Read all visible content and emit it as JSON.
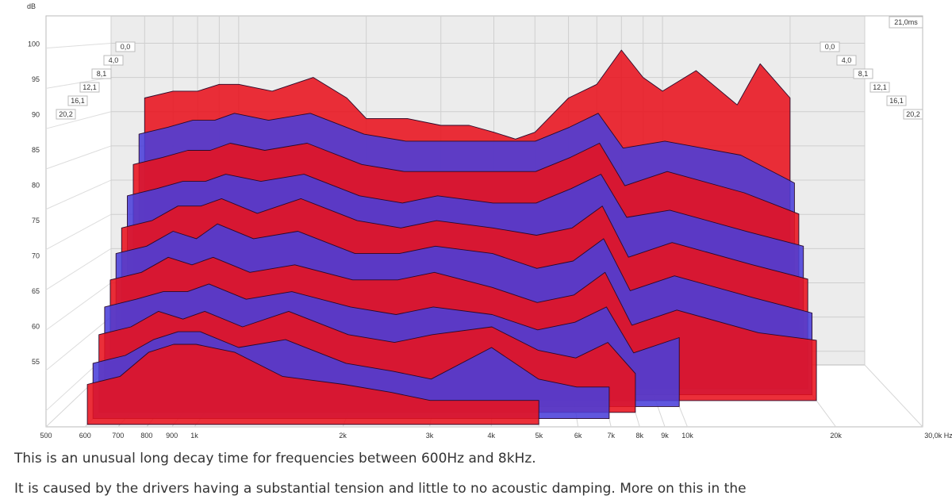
{
  "chart_data": {
    "type": "area",
    "subtype": "waterfall-3d",
    "ylabel": "dB",
    "yticks": [
      55,
      60,
      65,
      70,
      75,
      80,
      85,
      90,
      95,
      100
    ],
    "ylim": [
      53,
      104
    ],
    "xscale": "log",
    "xlim": [
      500,
      30000
    ],
    "xticks": [
      {
        "value": 500,
        "label": "500"
      },
      {
        "value": 600,
        "label": "600"
      },
      {
        "value": 700,
        "label": "700"
      },
      {
        "value": 800,
        "label": "800"
      },
      {
        "value": 900,
        "label": "900"
      },
      {
        "value": 1000,
        "label": "1k"
      },
      {
        "value": 2000,
        "label": "2k"
      },
      {
        "value": 3000,
        "label": "3k"
      },
      {
        "value": 4000,
        "label": "4k"
      },
      {
        "value": 5000,
        "label": "5k"
      },
      {
        "value": 6000,
        "label": "6k"
      },
      {
        "value": 7000,
        "label": "7k"
      },
      {
        "value": 8000,
        "label": "8k"
      },
      {
        "value": 9000,
        "label": "9k"
      },
      {
        "value": 10000,
        "label": "10k"
      },
      {
        "value": 20000,
        "label": "20k"
      },
      {
        "value": 30000,
        "label": "30,0k Hz"
      }
    ],
    "time_axis": {
      "unit": "ms",
      "max_label": "21,0ms",
      "ticks": [
        "0,0",
        "4,0",
        "8,1",
        "12,1",
        "16,1",
        "20,2"
      ]
    },
    "slice_colors": [
      "#e8121e",
      "#4a3fd9"
    ],
    "slices": [
      {
        "t": 20.2,
        "points": [
          [
            600,
            58
          ],
          [
            700,
            59
          ],
          [
            800,
            62
          ],
          [
            900,
            63
          ],
          [
            1000,
            63
          ],
          [
            1200,
            62
          ],
          [
            1500,
            59
          ],
          [
            2000,
            58
          ],
          [
            2500,
            57
          ],
          [
            3000,
            56
          ],
          [
            4000,
            56
          ],
          [
            5000,
            56
          ]
        ]
      },
      {
        "t": 18.2,
        "points": [
          [
            600,
            60
          ],
          [
            700,
            61
          ],
          [
            800,
            63
          ],
          [
            900,
            64
          ],
          [
            1000,
            64
          ],
          [
            1200,
            62
          ],
          [
            1500,
            63
          ],
          [
            2000,
            60
          ],
          [
            2500,
            59
          ],
          [
            3000,
            58
          ],
          [
            4000,
            62
          ],
          [
            5000,
            58
          ],
          [
            6000,
            57
          ],
          [
            7000,
            57
          ]
        ]
      },
      {
        "t": 16.1,
        "points": [
          [
            600,
            63
          ],
          [
            700,
            64
          ],
          [
            800,
            66
          ],
          [
            900,
            65
          ],
          [
            1000,
            66
          ],
          [
            1200,
            64
          ],
          [
            1500,
            66
          ],
          [
            2000,
            63
          ],
          [
            2500,
            62
          ],
          [
            3000,
            63
          ],
          [
            4000,
            64
          ],
          [
            5000,
            61
          ],
          [
            6000,
            60
          ],
          [
            7000,
            62
          ],
          [
            8000,
            58
          ]
        ]
      },
      {
        "t": 14.1,
        "points": [
          [
            600,
            66
          ],
          [
            700,
            67
          ],
          [
            800,
            68
          ],
          [
            900,
            68
          ],
          [
            1000,
            69
          ],
          [
            1200,
            67
          ],
          [
            1500,
            68
          ],
          [
            2000,
            66
          ],
          [
            2500,
            65
          ],
          [
            3000,
            66
          ],
          [
            4000,
            65
          ],
          [
            5000,
            63
          ],
          [
            6000,
            64
          ],
          [
            7000,
            66
          ],
          [
            8000,
            60
          ],
          [
            10000,
            62
          ]
        ]
      },
      {
        "t": 12.1,
        "points": [
          [
            600,
            69
          ],
          [
            700,
            70
          ],
          [
            800,
            72
          ],
          [
            900,
            71
          ],
          [
            1000,
            72
          ],
          [
            1200,
            70
          ],
          [
            1500,
            71
          ],
          [
            2000,
            69
          ],
          [
            2500,
            69
          ],
          [
            3000,
            70
          ],
          [
            4000,
            68
          ],
          [
            5000,
            66
          ],
          [
            6000,
            67
          ],
          [
            7000,
            70
          ],
          [
            8000,
            63
          ],
          [
            10000,
            65
          ],
          [
            15000,
            62
          ],
          [
            20000,
            61
          ]
        ]
      },
      {
        "t": 10.1,
        "points": [
          [
            600,
            72
          ],
          [
            700,
            73
          ],
          [
            800,
            75
          ],
          [
            900,
            74
          ],
          [
            1000,
            76
          ],
          [
            1200,
            74
          ],
          [
            1500,
            75
          ],
          [
            2000,
            72
          ],
          [
            2500,
            72
          ],
          [
            3000,
            73
          ],
          [
            4000,
            72
          ],
          [
            5000,
            70
          ],
          [
            6000,
            71
          ],
          [
            7000,
            74
          ],
          [
            8000,
            67
          ],
          [
            10000,
            69
          ],
          [
            15000,
            66
          ],
          [
            20000,
            64
          ]
        ]
      },
      {
        "t": 8.1,
        "points": [
          [
            600,
            75
          ],
          [
            700,
            76
          ],
          [
            800,
            78
          ],
          [
            900,
            78
          ],
          [
            1000,
            79
          ],
          [
            1200,
            77
          ],
          [
            1500,
            79
          ],
          [
            2000,
            76
          ],
          [
            2500,
            75
          ],
          [
            3000,
            76
          ],
          [
            4000,
            75
          ],
          [
            5000,
            74
          ],
          [
            6000,
            75
          ],
          [
            7000,
            78
          ],
          [
            8000,
            71
          ],
          [
            10000,
            73
          ],
          [
            15000,
            70
          ],
          [
            20000,
            68
          ]
        ]
      },
      {
        "t": 6.1,
        "points": [
          [
            600,
            79
          ],
          [
            700,
            80
          ],
          [
            800,
            81
          ],
          [
            900,
            81
          ],
          [
            1000,
            82
          ],
          [
            1200,
            81
          ],
          [
            1500,
            82
          ],
          [
            2000,
            79
          ],
          [
            2500,
            78
          ],
          [
            3000,
            79
          ],
          [
            4000,
            78
          ],
          [
            5000,
            78
          ],
          [
            6000,
            80
          ],
          [
            7000,
            82
          ],
          [
            8000,
            76
          ],
          [
            10000,
            77
          ],
          [
            15000,
            74
          ],
          [
            20000,
            72
          ]
        ]
      },
      {
        "t": 4.0,
        "points": [
          [
            600,
            83
          ],
          [
            700,
            84
          ],
          [
            800,
            85
          ],
          [
            900,
            85
          ],
          [
            1000,
            86
          ],
          [
            1200,
            85
          ],
          [
            1500,
            86
          ],
          [
            2000,
            83
          ],
          [
            2500,
            82
          ],
          [
            3000,
            82
          ],
          [
            4000,
            82
          ],
          [
            5000,
            82
          ],
          [
            6000,
            84
          ],
          [
            7000,
            86
          ],
          [
            8000,
            80
          ],
          [
            10000,
            82
          ],
          [
            15000,
            79
          ],
          [
            20000,
            76
          ]
        ]
      },
      {
        "t": 2.0,
        "points": [
          [
            600,
            87
          ],
          [
            700,
            88
          ],
          [
            800,
            89
          ],
          [
            900,
            89
          ],
          [
            1000,
            90
          ],
          [
            1200,
            89
          ],
          [
            1500,
            90
          ],
          [
            2000,
            87
          ],
          [
            2500,
            86
          ],
          [
            3000,
            86
          ],
          [
            4000,
            86
          ],
          [
            5000,
            86
          ],
          [
            6000,
            88
          ],
          [
            7000,
            90
          ],
          [
            8000,
            85
          ],
          [
            10000,
            86
          ],
          [
            15000,
            84
          ],
          [
            20000,
            80
          ]
        ]
      },
      {
        "t": 0.0,
        "points": [
          [
            600,
            92
          ],
          [
            700,
            93
          ],
          [
            800,
            93
          ],
          [
            900,
            94
          ],
          [
            1000,
            94
          ],
          [
            1200,
            93
          ],
          [
            1500,
            95
          ],
          [
            1800,
            92
          ],
          [
            2000,
            89
          ],
          [
            2500,
            89
          ],
          [
            3000,
            88
          ],
          [
            3500,
            88
          ],
          [
            4000,
            87
          ],
          [
            4500,
            86
          ],
          [
            5000,
            87
          ],
          [
            6000,
            92
          ],
          [
            7000,
            94
          ],
          [
            8000,
            99
          ],
          [
            9000,
            95
          ],
          [
            10000,
            93
          ],
          [
            12000,
            96
          ],
          [
            15000,
            91
          ],
          [
            17000,
            97
          ],
          [
            20000,
            92
          ]
        ]
      }
    ]
  },
  "captions": [
    "This is an unusual long decay time for frequencies between 600Hz and 8kHz.",
    "It is caused by the drivers having a substantial tension and little to no acoustic damping. More on this in the"
  ]
}
